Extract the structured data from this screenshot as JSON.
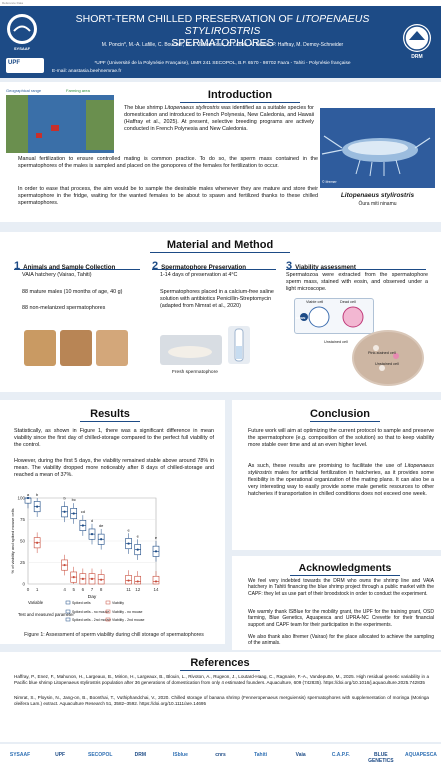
{
  "header": {
    "reference_tag": "Reference Data",
    "title_line1_pre": "SHORT-TERM CHILLED PRESERVATION OF ",
    "title_line1_italic": "LITOPENAEUS STYLIROSTRIS",
    "title_line2": "SPERMATOPHORES",
    "authors": "M. Poncin*, M.-A. Lafille, C. Boucher, M.-J. Tahou Fouk, C. Labbé, A. Bestin, P. Haffray, M. Demoy-Schneider",
    "affiliation": "*UPF (Université de la Polynésie Française), UMR 241 SECOPOL, B.P. 6570 - 98702 Faa'a - Tahiti - Polynésie française",
    "email": "E-mail: anastasia.beehnemrae.fr",
    "left_logo_text": "SYSAAF",
    "upf_logo_text": "UPF",
    "drm_logo_text": "DRM"
  },
  "introduction": {
    "heading": "Introduction",
    "map_label_left": "Geographical range",
    "map_label_right": "Farming area",
    "p1_pre": "The blue shrimp ",
    "p1_italic": "Litopenaeus stylirostris",
    "p1_post": " was identified as a suitable species for domestication and introduced to French Polynesia, New Caledonia, and Hawaii (Haffray et al., 2025). At present, selective breeding programs are actively conducted in French Polynesia and New Caledonia.",
    "p2": "Manual fertilization to ensure controlled mating is common practice. To do so, the sperm mass contained in the spermatophores of the males is sampled and placed on the gonopores of the females for fertilization to occur.",
    "p3": "In order to ease that process, the aim would be to sample the desirable males whenever they are mature and store their spermatophore in the fridge, waiting for the wanted females to be about to spawn and fertilized thanks to these chilled spermatophores.",
    "photo_caption_species": "Litopenaeus stylirostris",
    "photo_caption_local": "Ōura miti ninamu",
    "photo_credit": "© Ifremer"
  },
  "material": {
    "heading": "Material and Method",
    "col1": {
      "num": "1",
      "title": "Animals and Sample Collection",
      "items": [
        "VAIA hatchery (Vairao, Tahiti)",
        "88 mature males (10 months of age, 40 g)",
        "88 non-melanized spermatophores"
      ]
    },
    "col2": {
      "num": "2",
      "title": "Spermatophore Preservation",
      "items": [
        "1-14 days of preservation at 4°C",
        "Spermatophores placed in a calcium-free saline solution with antibiotics Penicillin-Streptomycin (adapted from Nimrat et al., 2020)"
      ],
      "photo_label": "Fresh spermatophore"
    },
    "col3": {
      "num": "3",
      "title": "Viability assessment",
      "text": "Spermatozoa were extracted from the spermatophore sperm mass, stained with eosin, and observed under a light microscope.",
      "viable_label": "Viable cell",
      "dead_label": "Dead cell",
      "eosin_label": "EOSIN",
      "unstained_label": "Unstained cell",
      "pink_label": "Pink-stained cell",
      "unstained_label2": "Unstained cell"
    }
  },
  "results": {
    "heading": "Results",
    "p1": "Statistically, as shown in Figure 1, there was a significant difference in mean viability since the first day of chilled-storage compared to the perfect full viability of the control.",
    "p2": "However, during the first 5 days, the viability remained stable above around 78% in mean. The viability dropped more noticeably after 8 days of chilled-storage and reached a mean of 37%.",
    "figure_caption": "Figure 1: Assessment of sperm viability during chill storage of spermatophores"
  },
  "chart_data": {
    "type": "box",
    "x": [
      0,
      1,
      4,
      5,
      6,
      7,
      8,
      11,
      12,
      14
    ],
    "xlabel": "Day",
    "ylabel": "% of viability and spiked mouse cells",
    "ylim": [
      0,
      100
    ],
    "yticks": [
      0,
      25,
      50,
      75,
      100
    ],
    "series": [
      {
        "name": "Spiked cells - no mouse",
        "values": [
          100,
          90,
          84,
          82,
          68,
          58,
          52,
          47,
          40,
          38
        ]
      },
      {
        "name": "Spiked cells - 2nd mouse",
        "values": [
          null,
          48,
          22,
          8,
          6,
          6,
          5,
          4,
          3,
          3
        ]
      }
    ],
    "legend_title_variable": "Variable",
    "legend_title_test": "Test and measured parameter",
    "legend_items": [
      "Spiked cells",
      "Viability",
      "Spiked cells - no mouse",
      "Viability - no mouse",
      "Spiked cells - 2nd mouse",
      "Viability - 2nd mouse"
    ],
    "letters": [
      "a",
      "b",
      "b",
      "bc",
      "cd",
      "d",
      "de",
      "e",
      "e",
      "e"
    ]
  },
  "conclusion": {
    "heading": "Conclusion",
    "p1": "Future work will aim at optimizing the current protocol to sample and preserve the spermatophore (e.g. composition of the solution) so that to keep viability more stable over time and at an even higher level.",
    "p2_pre": "As such, these results are promising to facilitate the use of ",
    "p2_italic": "Litopenaeus stylirostris",
    "p2_post": " males for artificial fertilization in hatcheries, as it provides some flexibility in the operational organization of the mating plans. It can also be a very interesting way to easily provide some male genetic resources to other hatcheries if transportation in chilled conditions does not exceed one week."
  },
  "acknowledgments": {
    "heading": "Acknowledgments",
    "p1": "We feel very indebted towards the DRM who owns the shrimp line and VAIA hatchery in Tahiti financing the blue shrimp project through a public market with the CAPF: they let us use part of their broodstock in order to conduct the experiment.",
    "p2": "We warmly thank ISBlue for the mobility grant, the UPF for the training grant, OSD farming, Blue Genetics, Aquapesca and UPRA-NC Crevette for their financial support and CAPF team for their participation in the experiments.",
    "p3": "We also thank also Ifremer (Vairao) for the place allocated to achieve the sampling of the animals."
  },
  "references": {
    "heading": "References",
    "r1": "Haffray, P., Enez, F., Mahunon, H., Largeaux, B., Mirion, H., Largeaux, B., Blouin, L., Rivoton, A., Rugeon, J., Loutard-Haag, C., Ragnaire, F.-A., Vandeputte, M., 2025. High residual genetic variability in a Pacific blue shrimp Litopenaeus stylirostris population after 36 generations of domestication from only 4 estimated founders. Aquaculture, 609 (742835). https://doi.org/10.1016/j.aquaculture.2025.742835",
    "r2": "Nimrat, S., Ploysin, N., Jang-on, B., Boonthai, T., Vuthiphandchai, V., 2020. Chilled storage of banana shrimp (Fenneropenaeus merguiensis) spermatophores with supplementation of moringa (Moringa oleifera Lam.) extract. Aquaculture Research 51, 3582–3592. https://doi.org/10.1111/are.14695"
  },
  "footer_logos": [
    "SYSAAF",
    "UPF",
    "SECOPOL",
    "DRM",
    "ISblue",
    "cnrs",
    "Tahiti",
    "Vaia",
    "C.A.P.F.",
    "BLUE GENETICS",
    "AQUAPESCA"
  ],
  "colors": {
    "primary": "#1d4b86",
    "band": "#e8eef5"
  }
}
